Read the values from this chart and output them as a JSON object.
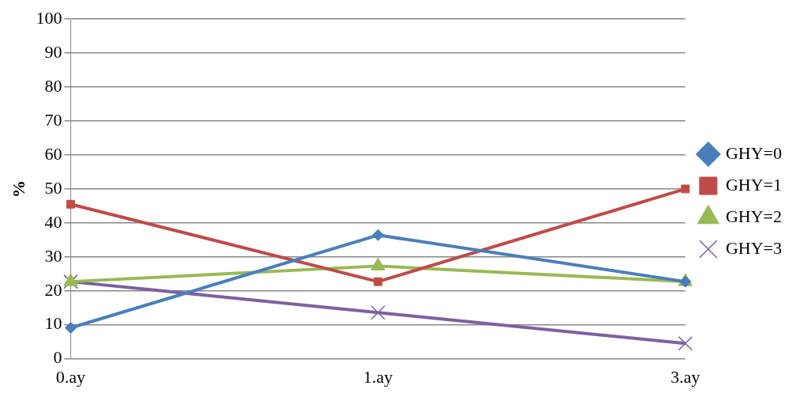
{
  "chart_data": {
    "type": "line",
    "ylabel": "%",
    "categories": [
      "0.ay",
      "1.ay",
      "3.ay"
    ],
    "series": [
      {
        "name": "GHY=0",
        "color": "#4a7ebb",
        "marker": "diamond",
        "values": [
          9.1,
          36.4,
          22.7
        ]
      },
      {
        "name": "GHY=1",
        "color": "#be4b48",
        "marker": "square",
        "values": [
          45.5,
          22.7,
          50
        ]
      },
      {
        "name": "GHY=2",
        "color": "#98b954",
        "marker": "triangle",
        "values": [
          22.7,
          27.3,
          22.7
        ]
      },
      {
        "name": "GHY=3",
        "color": "#7d60a0",
        "marker": "cross",
        "values": [
          22.7,
          13.6,
          4.5
        ]
      }
    ],
    "ylim": [
      0,
      100
    ],
    "yticks": [
      0,
      10,
      20,
      30,
      40,
      50,
      60,
      70,
      80,
      90,
      100
    ],
    "grid": "y",
    "legend": "right"
  }
}
